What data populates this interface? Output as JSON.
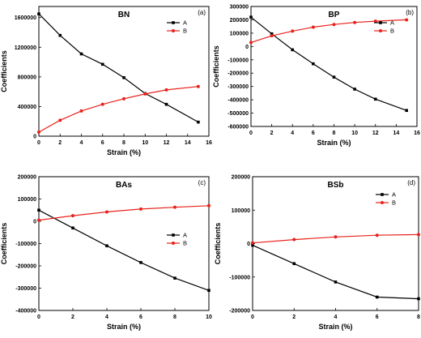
{
  "chart_data": [
    {
      "type": "line",
      "title": "BN",
      "panel_label": "(a)",
      "xlabel": "Strain (%)",
      "ylabel": "Coefficients",
      "xlim": [
        0,
        16
      ],
      "ylim": [
        0,
        1750000
      ],
      "xticks": [
        0,
        2,
        4,
        6,
        8,
        10,
        12,
        14,
        16
      ],
      "yticks": [
        0,
        400000,
        800000,
        1200000,
        1600000
      ],
      "ytick_labels": [
        "0",
        "400000",
        "800000",
        "1200000",
        "1600000"
      ],
      "legend_position": "top-right",
      "grid": false,
      "series": [
        {
          "name": "A",
          "color": "#000000",
          "marker": "square",
          "x": [
            0,
            2,
            4,
            6,
            8,
            10,
            12,
            15
          ],
          "y": [
            1650000,
            1360000,
            1110000,
            970000,
            790000,
            575000,
            430000,
            190000
          ]
        },
        {
          "name": "B",
          "color": "#e8221b",
          "marker": "circle",
          "x": [
            0,
            2,
            4,
            6,
            8,
            10,
            12,
            15
          ],
          "y": [
            55000,
            215000,
            340000,
            430000,
            505000,
            570000,
            625000,
            670000
          ]
        }
      ]
    },
    {
      "type": "line",
      "title": "BP",
      "panel_label": "(b)",
      "xlabel": "Strain (%)",
      "ylabel": "Coefficients",
      "xlim": [
        0,
        16
      ],
      "ylim": [
        -600000,
        300000
      ],
      "xticks": [
        0,
        2,
        4,
        6,
        8,
        10,
        12,
        14,
        16
      ],
      "yticks": [
        -600000,
        -500000,
        -400000,
        -300000,
        -200000,
        -100000,
        0,
        100000,
        200000,
        300000
      ],
      "ytick_labels": [
        "-600000",
        "-500000",
        "-400000",
        "-300000",
        "-200000",
        "-100000",
        "0",
        "100000",
        "200000",
        "300000"
      ],
      "legend_position": "top-right",
      "grid": false,
      "series": [
        {
          "name": "A",
          "color": "#000000",
          "marker": "square",
          "x": [
            0,
            2,
            4,
            6,
            8,
            10,
            12,
            15
          ],
          "y": [
            220000,
            95000,
            -25000,
            -130000,
            -230000,
            -320000,
            -395000,
            -480000
          ]
        },
        {
          "name": "B",
          "color": "#e8221b",
          "marker": "circle",
          "x": [
            0,
            2,
            4,
            6,
            8,
            10,
            12,
            15
          ],
          "y": [
            30000,
            80000,
            115000,
            145000,
            165000,
            180000,
            190000,
            200000
          ]
        }
      ]
    },
    {
      "type": "line",
      "title": "BAs",
      "panel_label": "(c)",
      "xlabel": "Strain (%)",
      "ylabel": "Coefficients",
      "xlim": [
        0,
        10
      ],
      "ylim": [
        -400000,
        200000
      ],
      "xticks": [
        0,
        2,
        4,
        6,
        8,
        10
      ],
      "yticks": [
        -400000,
        -300000,
        -200000,
        -100000,
        0,
        100000,
        200000
      ],
      "ytick_labels": [
        "-400000",
        "-300000",
        "-200000",
        "-100000",
        "0",
        "100000",
        "200000"
      ],
      "legend_position": "right",
      "grid": false,
      "series": [
        {
          "name": "A",
          "color": "#000000",
          "marker": "square",
          "x": [
            0,
            2,
            4,
            6,
            8,
            10
          ],
          "y": [
            50000,
            -30000,
            -110000,
            -185000,
            -255000,
            -310000
          ]
        },
        {
          "name": "B",
          "color": "#e8221b",
          "marker": "circle",
          "x": [
            0,
            2,
            4,
            6,
            8,
            10
          ],
          "y": [
            5000,
            25000,
            42000,
            55000,
            63000,
            70000
          ]
        }
      ]
    },
    {
      "type": "line",
      "title": "BSb",
      "panel_label": "(d)",
      "xlabel": "Strain (%)",
      "ylabel": "Coefficients",
      "xlim": [
        0,
        8
      ],
      "ylim": [
        -200000,
        200000
      ],
      "xticks": [
        0,
        2,
        4,
        6,
        8
      ],
      "yticks": [
        -200000,
        -100000,
        0,
        100000,
        200000
      ],
      "ytick_labels": [
        "-200000",
        "-100000",
        "0",
        "100000",
        "200000"
      ],
      "legend_position": "top-right",
      "grid": false,
      "series": [
        {
          "name": "A",
          "color": "#000000",
          "marker": "square",
          "x": [
            0,
            2,
            4,
            6,
            8
          ],
          "y": [
            -5000,
            -60000,
            -115000,
            -160000,
            -165000
          ]
        },
        {
          "name": "B",
          "color": "#e8221b",
          "marker": "circle",
          "x": [
            0,
            2,
            4,
            6,
            8
          ],
          "y": [
            2000,
            12000,
            20000,
            25000,
            27000
          ]
        }
      ]
    }
  ]
}
